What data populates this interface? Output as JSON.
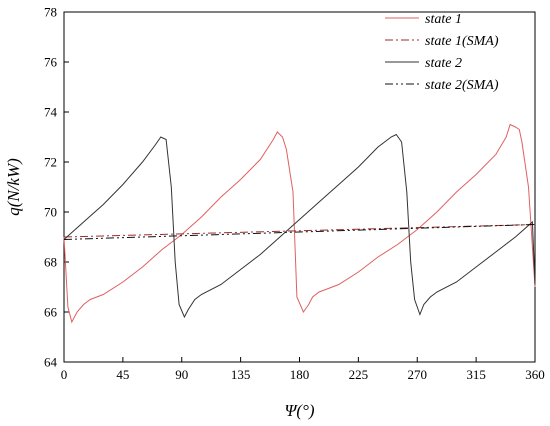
{
  "chart_data": {
    "type": "line",
    "xlabel": "Ψ(°)",
    "ylabel": "q(N/kW)",
    "xlim": [
      0,
      360
    ],
    "ylim": [
      64,
      78
    ],
    "xticks": [
      0,
      45,
      90,
      135,
      180,
      225,
      270,
      315,
      360
    ],
    "yticks": [
      64,
      66,
      68,
      70,
      72,
      74,
      76,
      78
    ],
    "grid": false,
    "legend_position": "top-right",
    "series": [
      {
        "name": "state 1",
        "color": "#e06060",
        "style": "solid",
        "x": [
          0,
          3,
          6,
          10,
          15,
          20,
          30,
          45,
          60,
          75,
          90,
          105,
          120,
          135,
          150,
          160,
          163,
          167,
          170,
          175,
          178,
          183,
          187,
          190,
          195,
          200,
          210,
          225,
          240,
          255,
          270,
          285,
          300,
          315,
          330,
          338,
          341,
          345,
          348,
          350,
          355,
          360
        ],
        "y": [
          69.0,
          66.2,
          65.6,
          66.0,
          66.3,
          66.5,
          66.7,
          67.2,
          67.8,
          68.5,
          69.1,
          69.8,
          70.6,
          71.3,
          72.1,
          72.9,
          73.2,
          73.0,
          72.5,
          70.8,
          66.6,
          66.0,
          66.3,
          66.6,
          66.8,
          66.9,
          67.1,
          67.6,
          68.2,
          68.7,
          69.3,
          70.0,
          70.8,
          71.5,
          72.3,
          73.0,
          73.5,
          73.4,
          73.3,
          72.8,
          71.0,
          67.0
        ]
      },
      {
        "name": "state 1(SMA)",
        "color": "#9b2d2d",
        "style": "dashdot",
        "x": [
          0,
          360
        ],
        "y": [
          69.0,
          69.5
        ]
      },
      {
        "name": "state 2",
        "color": "#333333",
        "style": "solid",
        "x": [
          0,
          15,
          30,
          45,
          60,
          70,
          74,
          78,
          82,
          85,
          88,
          92,
          95,
          100,
          105,
          120,
          135,
          150,
          165,
          180,
          195,
          210,
          225,
          240,
          250,
          254,
          258,
          262,
          265,
          268,
          272,
          275,
          280,
          285,
          300,
          315,
          330,
          345,
          358,
          360
        ],
        "y": [
          68.9,
          69.6,
          70.3,
          71.1,
          72.0,
          72.7,
          73.0,
          72.9,
          71.0,
          68.0,
          66.3,
          65.8,
          66.1,
          66.5,
          66.7,
          67.1,
          67.7,
          68.3,
          69.0,
          69.7,
          70.4,
          71.1,
          71.8,
          72.6,
          73.0,
          73.1,
          72.8,
          70.8,
          68.0,
          66.5,
          65.9,
          66.3,
          66.6,
          66.8,
          67.2,
          67.8,
          68.4,
          69.0,
          69.6,
          67.1
        ]
      },
      {
        "name": "state 2(SMA)",
        "color": "#111111",
        "style": "dashdotdot",
        "x": [
          0,
          360
        ],
        "y": [
          68.9,
          69.5
        ]
      }
    ]
  }
}
